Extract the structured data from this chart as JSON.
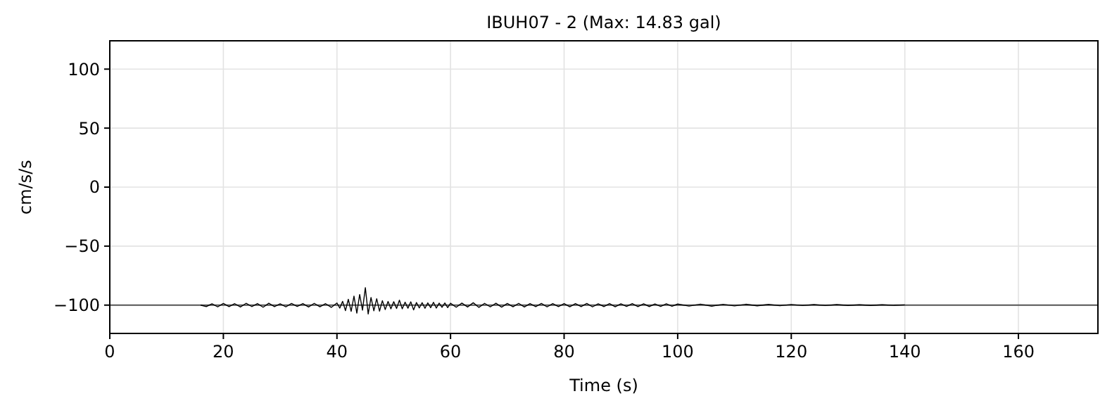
{
  "chart_data": {
    "type": "line",
    "title": "IBUH07 - 2 (Max: 14.83 gal)",
    "xlabel": "Time (s)",
    "ylabel": "cm/s/s",
    "xlim": [
      0,
      174
    ],
    "ylim": [
      -124,
      124
    ],
    "xticks": [
      0,
      20,
      40,
      60,
      80,
      100,
      120,
      140,
      160
    ],
    "yticks": [
      -100,
      -50,
      0,
      50,
      100
    ],
    "grid": true,
    "line_style": "solid",
    "ref_lines": [
      {
        "axis": "y",
        "value": -100,
        "color": "#555555"
      }
    ],
    "series": [
      {
        "color": "#000000",
        "x": [
          16,
          17,
          18,
          19,
          20,
          21,
          22,
          23,
          24,
          25,
          26,
          27,
          28,
          29,
          30,
          31,
          32,
          33,
          34,
          35,
          36,
          37,
          38,
          39,
          40,
          40.5,
          41,
          41.5,
          42,
          42.5,
          43,
          43.5,
          44,
          44.5,
          45,
          45.5,
          46,
          46.5,
          47,
          47.5,
          48,
          48.5,
          49,
          49.5,
          50,
          50.5,
          51,
          51.5,
          52,
          52.5,
          53,
          53.5,
          54,
          54.5,
          55,
          55.5,
          56,
          56.5,
          57,
          57.5,
          58,
          58.5,
          59,
          59.5,
          60,
          61,
          62,
          63,
          64,
          65,
          66,
          67,
          68,
          69,
          70,
          71,
          72,
          73,
          74,
          75,
          76,
          77,
          78,
          79,
          80,
          81,
          82,
          83,
          84,
          85,
          86,
          87,
          88,
          89,
          90,
          91,
          92,
          93,
          94,
          95,
          96,
          97,
          98,
          99,
          100,
          102,
          104,
          106,
          108,
          110,
          112,
          114,
          116,
          118,
          120,
          122,
          124,
          126,
          128,
          130,
          132,
          134,
          136,
          138,
          140
        ],
        "values": [
          -100,
          -101.2,
          -98.9,
          -101.5,
          -98.6,
          -101.3,
          -98.8,
          -101.6,
          -98.5,
          -101.2,
          -98.7,
          -101.8,
          -98.4,
          -101.3,
          -98.9,
          -101.5,
          -98.6,
          -101.1,
          -98.7,
          -101.6,
          -98.5,
          -101.4,
          -98.8,
          -101.9,
          -98.2,
          -102.5,
          -96.8,
          -104.6,
          -95.1,
          -105.3,
          -92.4,
          -106.8,
          -91.0,
          -104.2,
          -85.17,
          -107.5,
          -93.5,
          -104.8,
          -94.6,
          -105.1,
          -96.2,
          -103.8,
          -96.9,
          -103.2,
          -97.1,
          -102.9,
          -95.8,
          -103.1,
          -97.5,
          -102.6,
          -97.2,
          -104.1,
          -97.8,
          -102.4,
          -97.9,
          -102.7,
          -98.1,
          -102.2,
          -97.6,
          -102.5,
          -98.3,
          -101.9,
          -98.2,
          -102.1,
          -98.4,
          -101.8,
          -98.3,
          -101.6,
          -98.0,
          -101.9,
          -98.5,
          -101.5,
          -98.4,
          -101.7,
          -98.6,
          -101.4,
          -98.5,
          -101.6,
          -98.7,
          -101.3,
          -98.6,
          -101.5,
          -98.8,
          -101.2,
          -98.7,
          -101.4,
          -98.8,
          -101.3,
          -98.6,
          -101.5,
          -98.9,
          -101.2,
          -98.7,
          -101.4,
          -98.9,
          -101.1,
          -98.8,
          -101.3,
          -98.9,
          -101.2,
          -99.0,
          -101.1,
          -98.9,
          -101.0,
          -99.1,
          -100.8,
          -99.2,
          -100.9,
          -99.3,
          -100.7,
          -99.3,
          -100.6,
          -99.4,
          -100.5,
          -99.5,
          -100.4,
          -99.6,
          -100.4,
          -99.6,
          -100.3,
          -99.7,
          -100.3,
          -99.7,
          -100.2,
          -99.8
        ]
      }
    ]
  }
}
